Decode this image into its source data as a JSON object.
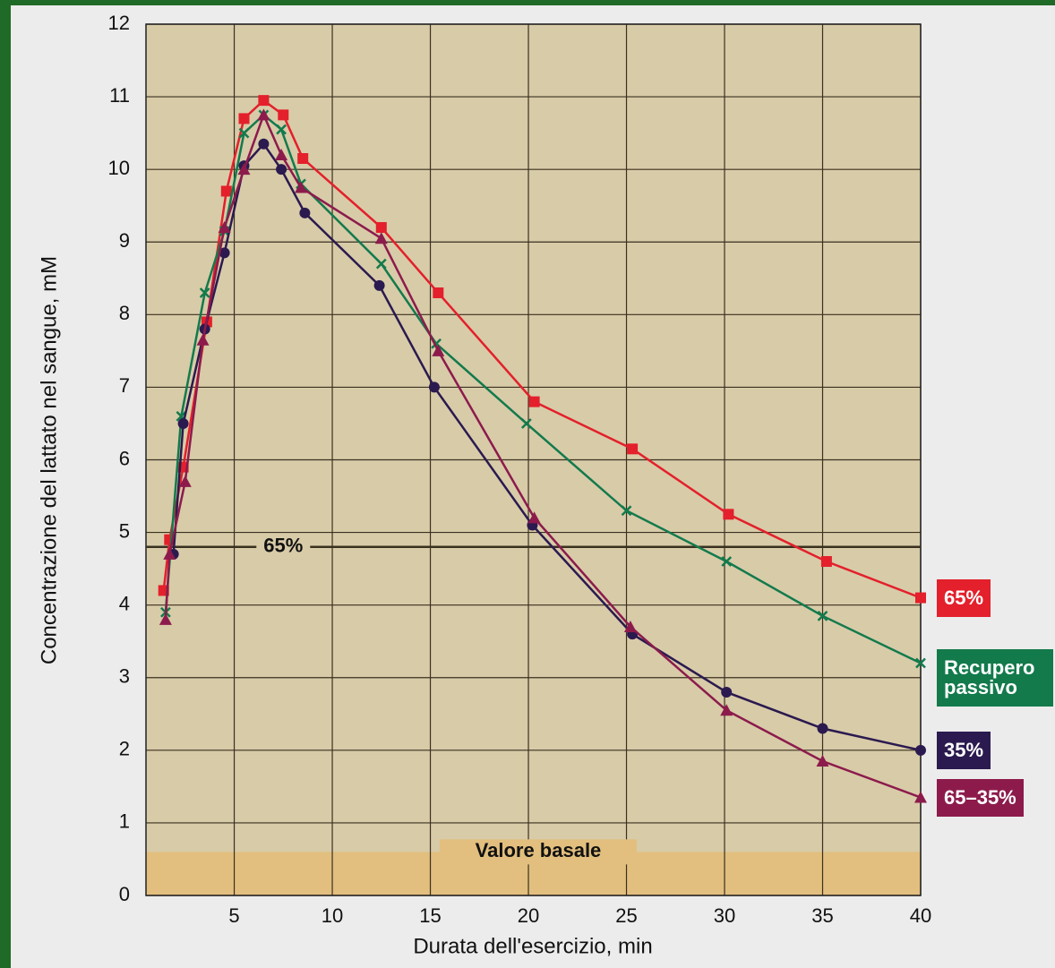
{
  "chart_data": {
    "type": "line",
    "xlabel": "Durata dell'esercizio, min",
    "ylabel": "Concentrazione del lattato nel sangue, mM",
    "xlim": [
      0.5,
      40
    ],
    "ylim": [
      0,
      12
    ],
    "xticks": [
      5,
      10,
      15,
      20,
      25,
      30,
      35,
      40
    ],
    "yticks": [
      0,
      1,
      2,
      3,
      4,
      5,
      6,
      7,
      8,
      9,
      10,
      11,
      12
    ],
    "grid": true,
    "reference_line": {
      "value": 4.8,
      "label": "65%"
    },
    "baseline_band": {
      "value": 0.6,
      "label": "Valore basale"
    },
    "series": [
      {
        "name": "65%",
        "color": "#e3202b",
        "marker": "square",
        "x": [
          1.4,
          1.7,
          2.4,
          3.6,
          4.6,
          5.5,
          6.5,
          7.5,
          8.5,
          12.5,
          15.4,
          20.3,
          25.3,
          30.2,
          35.2,
          40
        ],
        "values": [
          4.2,
          4.9,
          5.9,
          7.9,
          9.7,
          10.7,
          10.95,
          10.75,
          10.15,
          9.2,
          8.3,
          6.8,
          6.15,
          5.25,
          4.6,
          4.1
        ]
      },
      {
        "name": "Recupero passivo",
        "color": "#137a4c",
        "marker": "x",
        "x": [
          1.5,
          2.3,
          3.5,
          4.5,
          5.5,
          6.5,
          7.4,
          8.4,
          12.5,
          15.3,
          19.9,
          25,
          30.1,
          35,
          40
        ],
        "values": [
          3.9,
          6.6,
          8.3,
          9.15,
          10.5,
          10.75,
          10.55,
          9.8,
          8.7,
          7.6,
          6.5,
          5.3,
          4.6,
          3.85,
          3.2
        ]
      },
      {
        "name": "35%",
        "color": "#2b1a4f",
        "marker": "circle",
        "x": [
          1.9,
          2.4,
          3.5,
          4.5,
          5.5,
          6.5,
          7.4,
          8.6,
          12.4,
          15.2,
          20.2,
          25.3,
          30.1,
          35,
          40
        ],
        "values": [
          4.7,
          6.5,
          7.8,
          8.85,
          10.05,
          10.35,
          10.0,
          9.4,
          8.4,
          7.0,
          5.1,
          3.6,
          2.8,
          2.3,
          2.0
        ]
      },
      {
        "name": "65–35%",
        "color": "#8c1b4c",
        "marker": "triangle",
        "x": [
          1.5,
          1.7,
          2.5,
          3.4,
          4.5,
          5.5,
          6.5,
          7.4,
          8.4,
          12.5,
          15.4,
          20.3,
          25.2,
          30.1,
          35,
          40
        ],
        "values": [
          3.8,
          4.7,
          5.7,
          7.65,
          9.2,
          10.0,
          10.75,
          10.2,
          9.75,
          9.05,
          7.5,
          5.2,
          3.7,
          2.55,
          1.85,
          1.35
        ]
      }
    ]
  }
}
